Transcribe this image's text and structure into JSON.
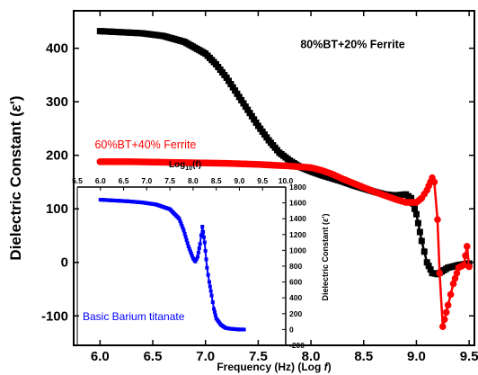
{
  "chart_data": [
    {
      "type": "scatter",
      "xlabel_prefix": "Frequency (Hz) (Log ",
      "xlabel_italic": "f",
      "xlabel_suffix": ")",
      "ylabel_prefix": "Dielectric Constant (",
      "ylabel_italic": "ε",
      "ylabel_suffix": "')",
      "xlim": [
        5.75,
        9.55
      ],
      "ylim": [
        -155,
        470
      ],
      "xticks": [
        6.0,
        6.5,
        7.0,
        7.5,
        8.0,
        8.5,
        9.0,
        9.5
      ],
      "xtick_labels": [
        "6.0",
        "6.5",
        "7.0",
        "7.5",
        "8.0",
        "8.5",
        "9.0",
        "9.5"
      ],
      "yticks": [
        -100,
        0,
        100,
        200,
        300,
        400
      ],
      "ytick_labels": [
        "-100",
        "0",
        "100",
        "200",
        "300",
        "400"
      ],
      "series": [
        {
          "name": "80%BT+20% Ferrite",
          "color": "#000000",
          "marker": "square",
          "x": [
            6.0,
            6.2,
            6.4,
            6.6,
            6.8,
            7.0,
            7.1,
            7.2,
            7.3,
            7.4,
            7.5,
            7.6,
            7.7,
            7.8,
            7.9,
            8.0,
            8.1,
            8.2,
            8.3,
            8.4,
            8.5,
            8.6,
            8.7,
            8.8,
            8.9,
            8.95,
            9.0,
            9.05,
            9.1,
            9.15,
            9.2,
            9.3,
            9.4,
            9.5
          ],
          "y": [
            432,
            430,
            428,
            423,
            412,
            390,
            370,
            345,
            315,
            285,
            255,
            228,
            205,
            190,
            178,
            170,
            163,
            157,
            151,
            144,
            138,
            132,
            127,
            125,
            127,
            120,
            90,
            40,
            0,
            -20,
            -22,
            -10,
            -5,
            -2
          ]
        },
        {
          "name": "60%BT+40% Ferrite",
          "color": "#ff0000",
          "marker": "circle",
          "x": [
            6.0,
            6.3,
            6.6,
            6.9,
            7.2,
            7.5,
            7.8,
            8.0,
            8.1,
            8.2,
            8.3,
            8.4,
            8.5,
            8.6,
            8.7,
            8.8,
            8.9,
            9.0,
            9.05,
            9.1,
            9.15,
            9.17,
            9.2,
            9.22,
            9.25,
            9.3,
            9.35,
            9.4,
            9.45,
            9.48,
            9.5
          ],
          "y": [
            188,
            188,
            187,
            186,
            185,
            183,
            180,
            177,
            172,
            165,
            156,
            148,
            140,
            132,
            125,
            118,
            112,
            112,
            120,
            135,
            158,
            150,
            80,
            -20,
            -120,
            -80,
            -40,
            -10,
            -5,
            30,
            -8
          ]
        }
      ],
      "annotations": [
        {
          "text": "80%BT+20% Ferrite",
          "x": 7.9,
          "y": 400,
          "color": "#000000"
        },
        {
          "text": "60%BT+40% Ferrite",
          "x": 5.95,
          "y": 213,
          "color": "#ff0000"
        }
      ]
    },
    {
      "type": "scatter",
      "role": "inset",
      "title": "Basic Barium titanate",
      "xlabel_prefix": "Log",
      "xlabel_sub": "10",
      "xlabel_suffix": "(f)",
      "ylabel_prefix": "Dielectric Constant (",
      "ylabel_italic": "ε",
      "ylabel_suffix": "')",
      "xlim": [
        5.5,
        10.0
      ],
      "ylim": [
        -200,
        1800
      ],
      "xticks": [
        5.5,
        6.0,
        6.5,
        7.0,
        7.5,
        8.0,
        8.5,
        9.0,
        9.5,
        10.0
      ],
      "xtick_labels": [
        "5.5",
        "6.0",
        "6.5",
        "7.0",
        "7.5",
        "8.0",
        "8.5",
        "9.0",
        "9.5",
        "10.0"
      ],
      "yticks": [
        -200,
        0,
        200,
        400,
        600,
        800,
        1000,
        1200,
        1400,
        1600,
        1800
      ],
      "ytick_labels": [
        "-200",
        "0",
        "200",
        "400",
        "600",
        "800",
        "1000",
        "1200",
        "1400",
        "1600",
        "1800"
      ],
      "series": [
        {
          "name": "Basic Barium titanate",
          "color": "#0000ff",
          "marker": "square",
          "x": [
            6.0,
            6.3,
            6.6,
            6.9,
            7.2,
            7.5,
            7.7,
            7.8,
            7.9,
            8.0,
            8.05,
            8.1,
            8.15,
            8.2,
            8.25,
            8.3,
            8.35,
            8.4,
            8.45,
            8.5,
            8.6,
            8.7,
            8.8,
            8.9,
            9.0,
            9.1
          ],
          "y": [
            1640,
            1630,
            1620,
            1605,
            1580,
            1520,
            1400,
            1250,
            1050,
            900,
            860,
            920,
            1080,
            1300,
            1100,
            780,
            600,
            430,
            260,
            140,
            60,
            20,
            10,
            5,
            0,
            0
          ]
        }
      ]
    }
  ]
}
